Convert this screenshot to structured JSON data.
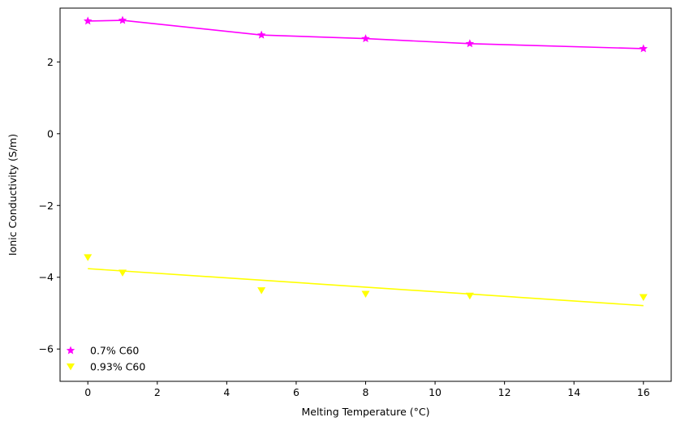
{
  "chart_data": {
    "type": "scatter",
    "xlabel": "Melting Temperature (°C)",
    "ylabel": "Ionic Conductivity (S/m)",
    "xlim": [
      -0.8,
      16.8
    ],
    "ylim": [
      -6.9,
      3.5
    ],
    "x_ticks": [
      0,
      2,
      4,
      6,
      8,
      10,
      12,
      14,
      16
    ],
    "y_ticks": [
      -6,
      -4,
      -2,
      0,
      2
    ],
    "grid": false,
    "legend_position": "lower-left",
    "series": [
      {
        "name": "0.7% C60",
        "color": "#ff00ff",
        "marker": "star",
        "x": [
          0,
          1,
          5,
          8,
          11,
          16
        ],
        "y": [
          3.14,
          3.16,
          2.75,
          2.65,
          2.51,
          2.37
        ],
        "fit_line": [
          [
            0,
            3.14
          ],
          [
            1,
            3.16
          ],
          [
            5,
            2.75
          ],
          [
            8,
            2.65
          ],
          [
            11,
            2.51
          ],
          [
            16,
            2.37
          ]
        ]
      },
      {
        "name": "0.93% C60",
        "color": "#ffff00",
        "marker": "triangle-down",
        "x": [
          0,
          1,
          5,
          8,
          11,
          16
        ],
        "y": [
          -3.45,
          -3.88,
          -4.37,
          -4.47,
          -4.52,
          -4.56
        ],
        "fit_line": [
          [
            0,
            -3.76
          ],
          [
            16,
            -4.79
          ]
        ]
      }
    ]
  }
}
